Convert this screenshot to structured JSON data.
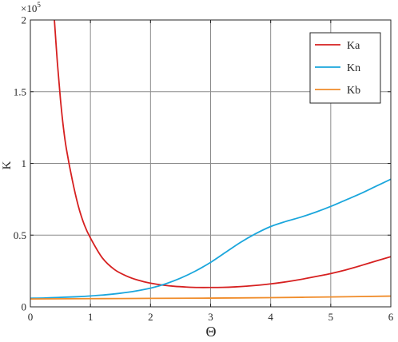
{
  "chart_data": {
    "type": "line",
    "xlabel": "Θ",
    "ylabel": "K",
    "exponent_label": "×10",
    "exponent_power": "5",
    "xlim": [
      0,
      6
    ],
    "ylim": [
      0,
      200000
    ],
    "xticks": [
      0,
      1,
      2,
      3,
      4,
      5,
      6
    ],
    "xtick_labels": [
      "0",
      "1",
      "2",
      "3",
      "4",
      "5",
      "6"
    ],
    "yticks": [
      0,
      50000,
      100000,
      150000,
      200000
    ],
    "ytick_labels": [
      "0",
      "0.5",
      "1",
      "1.5",
      "2"
    ],
    "grid": true,
    "legend_position": "top-right",
    "series": [
      {
        "name": "Ka",
        "color": "#d62020",
        "x": [
          0.4,
          0.45,
          0.5,
          0.55,
          0.6,
          0.7,
          0.8,
          0.9,
          1.0,
          1.2,
          1.4,
          1.6,
          1.8,
          2.0,
          2.2,
          2.4,
          2.6,
          2.8,
          3.0,
          3.2,
          3.4,
          3.6,
          3.8,
          4.0,
          4.2,
          4.4,
          4.6,
          4.8,
          5.0,
          5.2,
          5.4,
          5.6,
          5.8,
          6.0
        ],
        "y": [
          200000,
          170000,
          145000,
          125000,
          110000,
          88000,
          70000,
          57000,
          48000,
          34000,
          26000,
          21500,
          18500,
          16500,
          15200,
          14300,
          13800,
          13500,
          13500,
          13600,
          13900,
          14400,
          15100,
          16000,
          17100,
          18400,
          19900,
          21500,
          23200,
          25200,
          27500,
          30000,
          32500,
          35000
        ]
      },
      {
        "name": "Kn",
        "color": "#1aa6dc",
        "x": [
          0,
          0.25,
          0.5,
          0.75,
          1.0,
          1.25,
          1.5,
          1.75,
          2.0,
          2.25,
          2.5,
          2.75,
          3.0,
          3.25,
          3.5,
          3.75,
          4.0,
          4.25,
          4.5,
          4.75,
          5.0,
          5.25,
          5.5,
          5.75,
          6.0
        ],
        "y": [
          6000,
          6200,
          6600,
          7000,
          7600,
          8400,
          9500,
          11000,
          13000,
          16000,
          20000,
          25000,
          31000,
          38000,
          45000,
          51000,
          56000,
          59500,
          62500,
          66000,
          70000,
          74500,
          79000,
          84000,
          89000
        ]
      },
      {
        "name": "Kb",
        "color": "#f08c2a",
        "x": [
          0,
          1,
          2,
          3,
          4,
          5,
          6
        ],
        "y": [
          5500,
          5700,
          5900,
          6100,
          6400,
          6900,
          7500
        ]
      }
    ]
  }
}
